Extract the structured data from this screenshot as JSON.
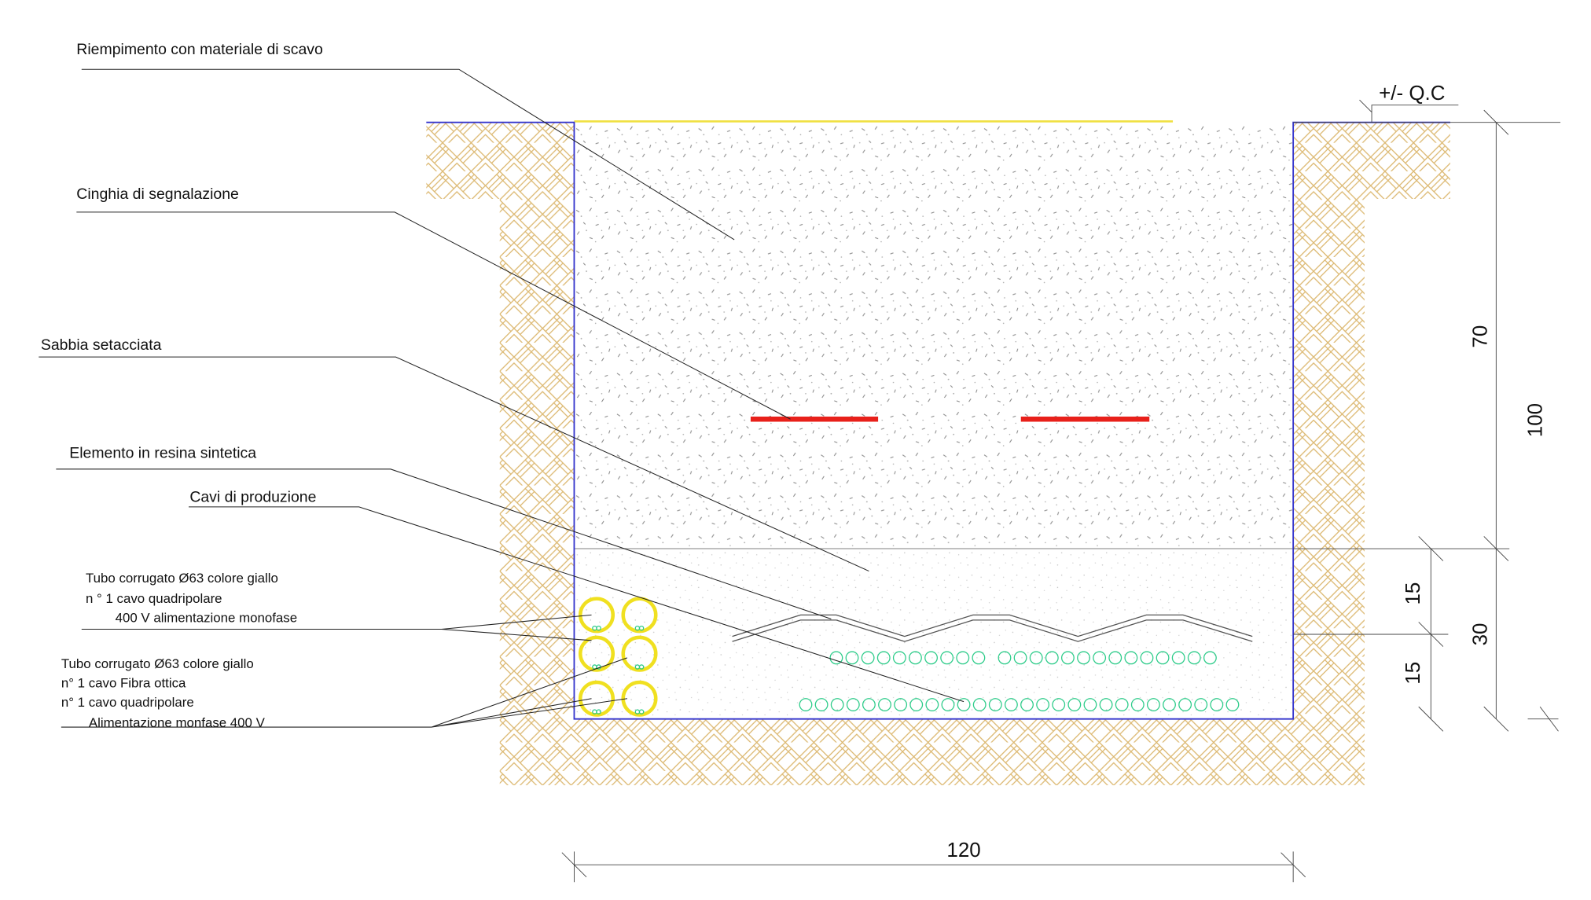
{
  "labels": [
    "Riempimento con materiale di scavo",
    "Cinghia di segnalazione",
    "Sabbia setacciata",
    "Elemento in resina sintetica",
    "Cavi di produzione"
  ],
  "tube_notes_1": [
    "Tubo corrugato Ø63 colore giallo",
    "n ° 1 cavo quadripolare",
    "400 V alimentazione monofase"
  ],
  "tube_notes_2": [
    "Tubo corrugato Ø63 colore giallo",
    "n° 1 cavo Fibra ottica",
    "n° 1 cavo quadripolare",
    "Alimentazione monfase 400 V"
  ],
  "level": "+/- Q.C",
  "dimensions": {
    "width": 120,
    "fill_depth": 70,
    "total_depth": 100,
    "upper_sand": 15,
    "lower_sand": 15,
    "sand_total": 30
  }
}
